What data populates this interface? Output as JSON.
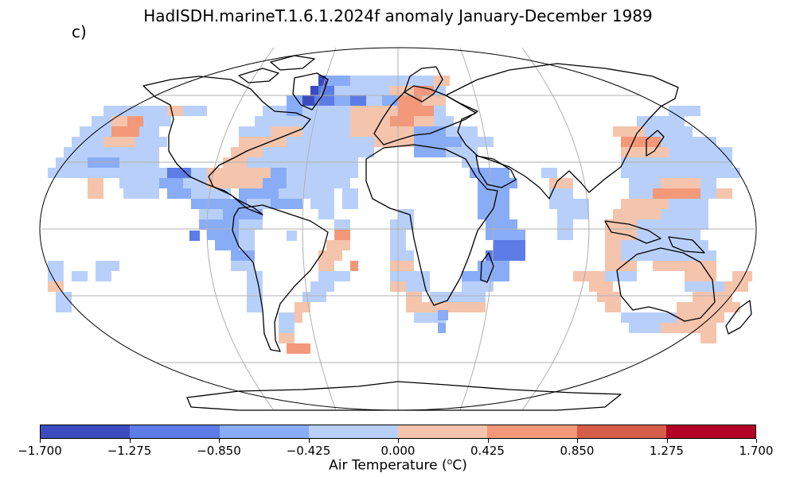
{
  "title": "HadISDH.marineT.1.6.1.2024f anomaly January-December 1989",
  "panel_label": "c)",
  "colorbar": {
    "label": "Air Temperature (",
    "label_sup": "o",
    "label_tail": "C)",
    "ticks": [
      "−1.700",
      "−1.275",
      "−0.850",
      "−0.425",
      "0.000",
      "0.425",
      "0.850",
      "1.275",
      "1.700"
    ],
    "colors": [
      "#3b4cc0",
      "#5d7ce6",
      "#89acf7",
      "#b8d0f9",
      "#f5c4ac",
      "#f39879",
      "#d75d4b",
      "#b40426"
    ]
  },
  "map": {
    "projection": "Robinson",
    "coastline_color": "#000000",
    "gridline_color": "#b0b0b0"
  }
}
